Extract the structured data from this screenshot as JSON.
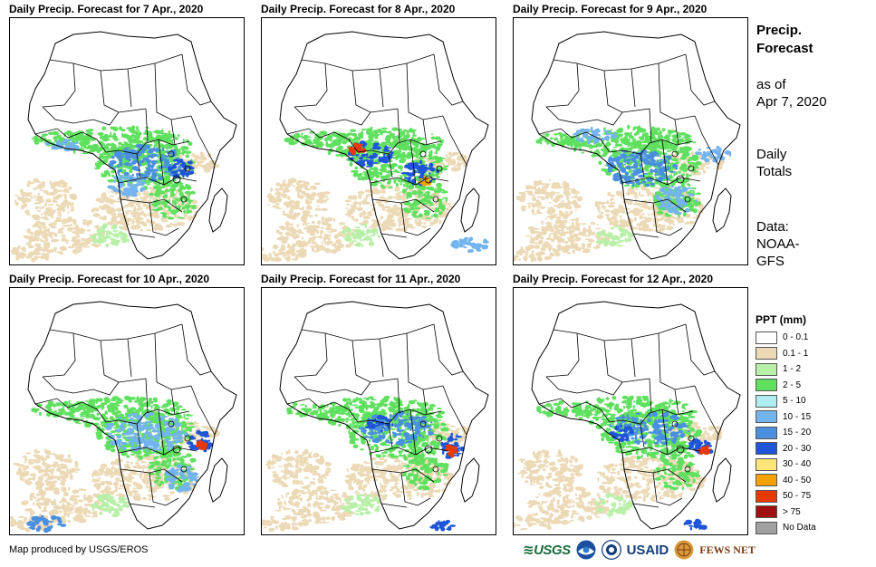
{
  "panels": [
    {
      "title": "Daily Precip. Forecast for 7 Apr., 2020",
      "day": 7
    },
    {
      "title": "Daily Precip. Forecast for 8 Apr., 2020",
      "day": 8
    },
    {
      "title": "Daily Precip. Forecast for 9 Apr., 2020",
      "day": 9
    },
    {
      "title": "Daily Precip. Forecast for 10 Apr., 2020",
      "day": 10
    },
    {
      "title": "Daily Precip. Forecast for 11 Apr., 2020",
      "day": 11
    },
    {
      "title": "Daily Precip. Forecast for 12 Apr., 2020",
      "day": 12
    }
  ],
  "side": {
    "title_line1": "Precip.",
    "title_line2": "Forecast",
    "asof_line1": "as of",
    "asof_line2": "Apr 7, 2020",
    "totals_line1": "Daily",
    "totals_line2": "Totals",
    "data_line1": "Data:",
    "data_line2": "NOAA-",
    "data_line3": "GFS"
  },
  "legend": {
    "title": "PPT (mm)",
    "items": [
      {
        "label": "0 - 0.1",
        "color": "#ffffff"
      },
      {
        "label": "0.1 - 1",
        "color": "#ecd9b5"
      },
      {
        "label": "1 - 2",
        "color": "#b8f0a8"
      },
      {
        "label": "2 - 5",
        "color": "#5fe05f"
      },
      {
        "label": "5 - 10",
        "color": "#aeeef0"
      },
      {
        "label": "10 - 15",
        "color": "#74b4ee"
      },
      {
        "label": "15 - 20",
        "color": "#4a8fe0"
      },
      {
        "label": "20 - 30",
        "color": "#1f55d8"
      },
      {
        "label": "30 - 40",
        "color": "#ffe57a"
      },
      {
        "label": "40 - 50",
        "color": "#f5a200"
      },
      {
        "label": "50 - 75",
        "color": "#e83a00"
      },
      {
        "label": "> 75",
        "color": "#a01010"
      },
      {
        "label": "No Data",
        "color": "#a0a0a0"
      }
    ]
  },
  "credit": "Map produced by USGS/EROS",
  "logos": {
    "usgs": "≋USGS",
    "usaid": "USAID",
    "fews": "FEWS NET"
  }
}
